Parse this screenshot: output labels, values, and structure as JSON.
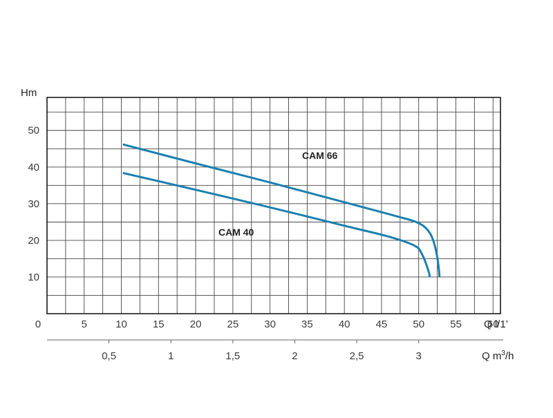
{
  "chart_data": {
    "type": "line",
    "ylabel": "Hm",
    "xlabel": "Q l/1’",
    "x2label_prefix": "Q m",
    "x2label_sup": "3",
    "x2label_suffix": "/h",
    "xlim": [
      0,
      61
    ],
    "ylim": [
      0,
      59
    ],
    "x_ticks": [
      "0",
      "5",
      "10",
      "15",
      "20",
      "25",
      "30",
      "35",
      "40",
      "45",
      "50",
      "55",
      "60"
    ],
    "x_tick_values": [
      0,
      5,
      10,
      15,
      20,
      25,
      30,
      35,
      40,
      45,
      50,
      55,
      60
    ],
    "x2_ticks": [
      "0,5",
      "1",
      "1,5",
      "2",
      "2,5",
      "3"
    ],
    "x2_tick_values": [
      0.5,
      1,
      1.5,
      2,
      2.5,
      3
    ],
    "y_ticks": [
      "10",
      "20",
      "30",
      "40",
      "50"
    ],
    "y_tick_values": [
      10,
      20,
      30,
      40,
      50
    ],
    "grid": true,
    "line_color": "#1a7fb0",
    "series": [
      {
        "name": "CAM 66",
        "x": [
          10.2,
          20,
          30,
          40,
          47,
          50,
          51.5,
          52.3,
          52.7,
          52.8
        ],
        "y": [
          46.2,
          41.0,
          35.8,
          30.4,
          26.6,
          24.7,
          22.0,
          17.5,
          12.5,
          10.0
        ]
      },
      {
        "name": "CAM 40",
        "x": [
          10.2,
          20,
          30,
          40,
          46,
          49.5,
          50.5,
          51.1,
          51.4,
          51.5
        ],
        "y": [
          38.4,
          33.8,
          29.0,
          24.0,
          21.0,
          18.5,
          16.0,
          13.0,
          11.0,
          10.0
        ]
      }
    ]
  }
}
